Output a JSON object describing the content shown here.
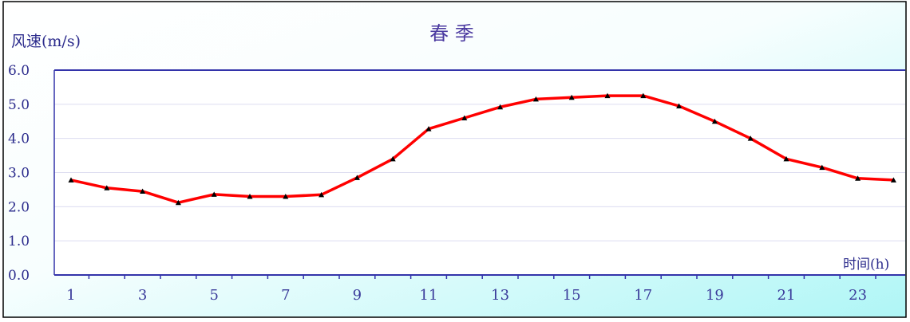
{
  "chart_data": {
    "type": "line",
    "title": "春 季",
    "ylabel": "风速(m/s)",
    "xlabel": "时间(h)",
    "ylim": [
      0,
      6
    ],
    "yticks": [
      "0.0",
      "1.0",
      "2.0",
      "3.0",
      "4.0",
      "5.0",
      "6.0"
    ],
    "xticks": [
      "1",
      "3",
      "5",
      "7",
      "9",
      "11",
      "13",
      "15",
      "17",
      "19",
      "21",
      "23"
    ],
    "grid": true,
    "legend": "none",
    "series": [
      {
        "color": "#ff0000",
        "marker_color": "#000000",
        "x": [
          1,
          2,
          3,
          4,
          5,
          6,
          7,
          8,
          9,
          10,
          11,
          12,
          13,
          14,
          15,
          16,
          17,
          18,
          19,
          20,
          21,
          22,
          23,
          24
        ],
        "values": [
          2.78,
          2.55,
          2.45,
          2.12,
          2.36,
          2.3,
          2.3,
          2.35,
          2.85,
          3.4,
          4.28,
          4.6,
          4.92,
          5.15,
          5.2,
          5.25,
          5.25,
          4.95,
          4.5,
          4.0,
          3.4,
          3.15,
          2.83,
          2.78
        ]
      }
    ]
  }
}
